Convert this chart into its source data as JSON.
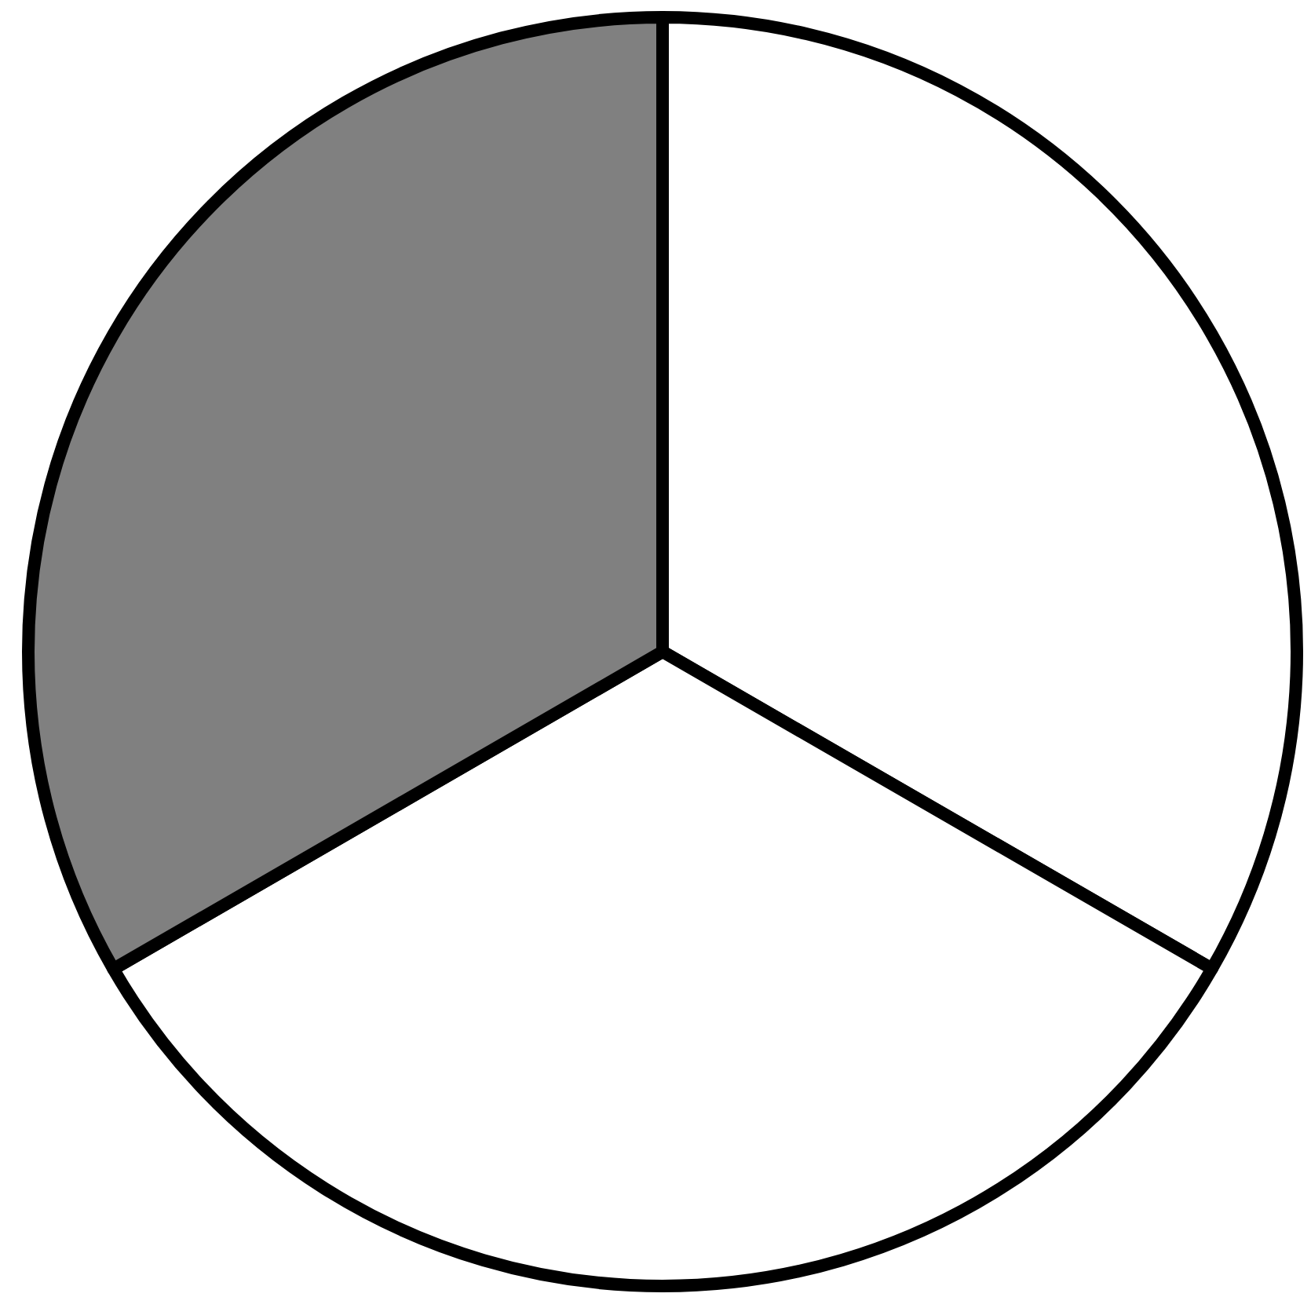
{
  "chart_data": {
    "type": "pie",
    "categories": [
      null,
      null,
      null
    ],
    "values": [
      33.33,
      33.33,
      33.34
    ],
    "colors": [
      "#ffffff",
      "#ffffff",
      "#808080"
    ]
  }
}
